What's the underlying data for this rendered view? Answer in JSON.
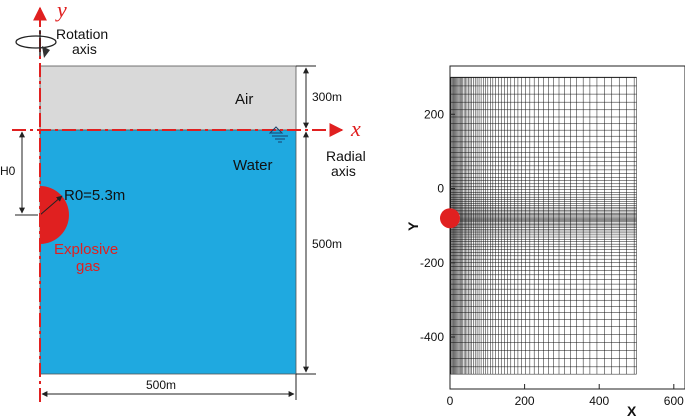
{
  "left": {
    "y_axis_label": "y",
    "x_axis_label": "x",
    "rotation_axis_label": [
      "Rotation",
      "axis"
    ],
    "radial_axis_label": [
      "Radial",
      "axis"
    ],
    "air_label": "Air",
    "water_label": "Water",
    "air_height_label": "300m",
    "water_height_label": "500m",
    "width_label": "500m",
    "depth_label": "H0",
    "radius_label": "R0=5.3m",
    "explosive_label": [
      "Explosive",
      "gas"
    ],
    "colors": {
      "air": "#d9d9d9",
      "water": "#1fa9e0",
      "axis": "#e02020",
      "explosive": "#e02020"
    }
  },
  "right": {
    "xlabel": "X",
    "ylabel": "Y",
    "x_ticks": [
      0,
      200,
      400,
      600
    ],
    "y_ticks": [
      200,
      0,
      -200,
      -400
    ],
    "xlim": [
      0,
      630
    ],
    "ylim": [
      -540,
      330
    ],
    "mesh_x_extent": [
      0,
      500
    ],
    "mesh_y_extent": [
      -500,
      300
    ],
    "bubble_center": [
      0,
      -80
    ]
  }
}
